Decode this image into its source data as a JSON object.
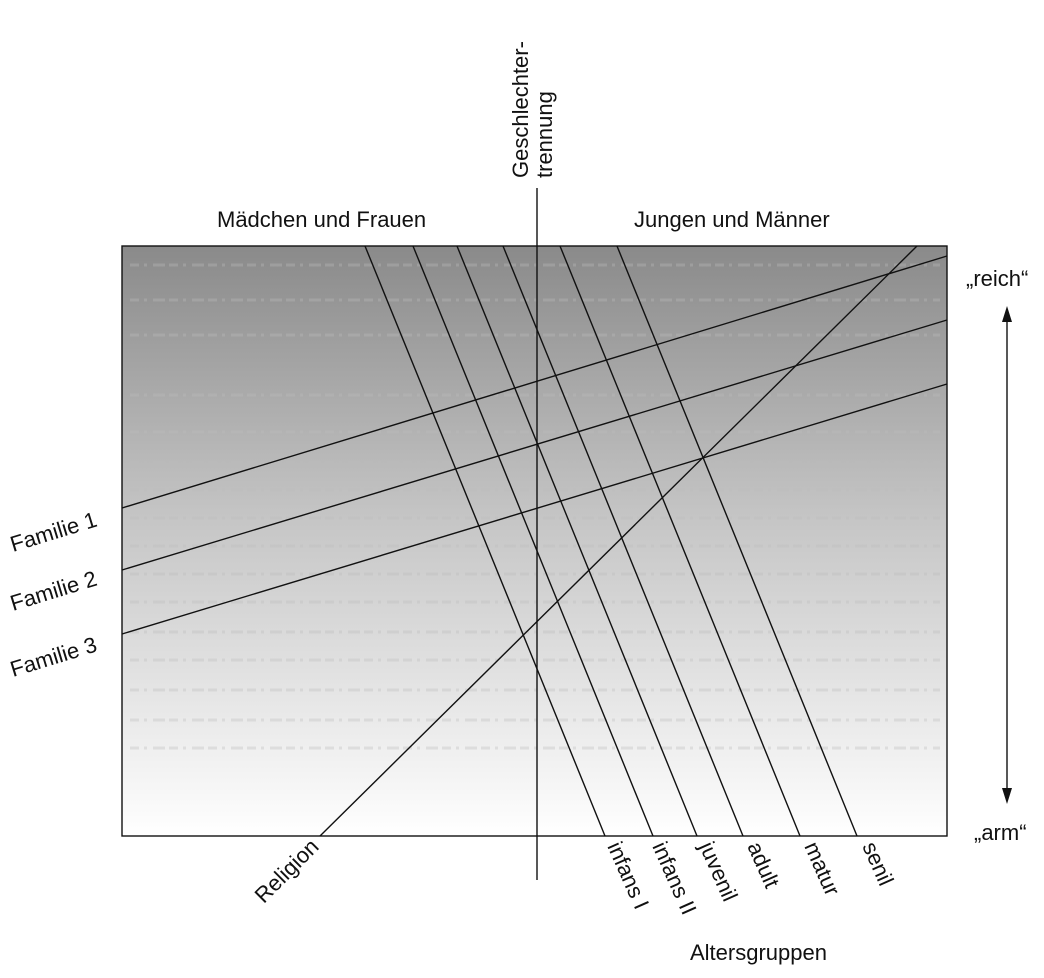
{
  "diagram": {
    "top_axis_label": "Geschlechter-\ntrennung",
    "female_label": "Mädchen und Frauen",
    "male_label": "Jungen und Männer",
    "scale_top_label": "„reich“",
    "scale_bottom_label": "„arm“",
    "families": [
      "Familie 1",
      "Familie 2",
      "Familie 3"
    ],
    "religion_label": "Religion",
    "age_groups": [
      "infans I",
      "infans II",
      "juvenil",
      "adult",
      "matur",
      "senil"
    ],
    "age_axis_label": "Altersgruppen"
  },
  "colors": {
    "gradient_top": "#8a8a8a",
    "gradient_bottom": "#ffffff",
    "line": "#111111"
  }
}
